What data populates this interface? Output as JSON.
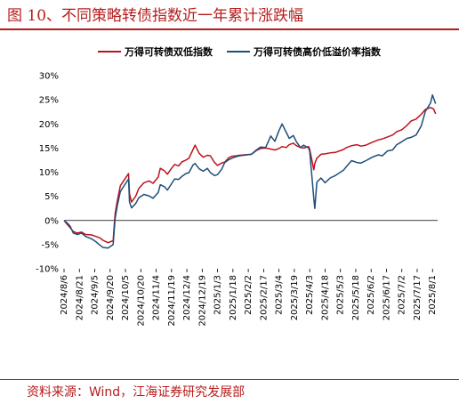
{
  "figure": {
    "title": "图 10、不同策略转债指数近一年累计涨跌幅",
    "source": "资料来源：Wind，江海证券研究发展部"
  },
  "colors": {
    "title": "#b71c1c",
    "series_red": "#c0121c",
    "series_blue": "#1f4e79"
  },
  "chart_data": {
    "type": "line",
    "title": "",
    "xlabel": "",
    "ylabel": "",
    "x_ticks": [
      "2024/8/6",
      "2024/8/21",
      "2024/9/5",
      "2024/9/20",
      "2024/10/5",
      "2024/10/20",
      "2024/11/4",
      "2024/11/19",
      "2024/12/4",
      "2024/12/19",
      "2025/1/3",
      "2025/1/18",
      "2025/2/2",
      "2025/2/17",
      "2025/3/4",
      "2025/3/19",
      "2025/4/3",
      "2025/4/18",
      "2025/5/3",
      "2025/5/18",
      "2025/6/2",
      "2025/6/17",
      "2025/7/2",
      "2025/7/17",
      "2025/8/1"
    ],
    "y_ticks": [
      "30%",
      "25%",
      "20%",
      "15%",
      "10%",
      "5%",
      "0%",
      "-5%",
      "-10%"
    ],
    "ylim": [
      -10,
      30
    ],
    "xlim": [
      "2024/8/6",
      "2025/8/6"
    ],
    "legend_position": "top",
    "grid": false,
    "series": [
      {
        "name": "万得可转债双低指数",
        "color": "#c0121c",
        "points": [
          [
            "2024/8/6",
            0
          ],
          [
            "2024/8/9",
            -0.8
          ],
          [
            "2024/8/12",
            -1.5
          ],
          [
            "2024/8/15",
            -2.3
          ],
          [
            "2024/8/19",
            -2.6
          ],
          [
            "2024/8/23",
            -2.4
          ],
          [
            "2024/8/27",
            -2.9
          ],
          [
            "2024/9/2",
            -3.0
          ],
          [
            "2024/9/6",
            -3.3
          ],
          [
            "2024/9/10",
            -3.6
          ],
          [
            "2024/9/13",
            -4.1
          ],
          [
            "2024/9/18",
            -4.6
          ],
          [
            "2024/9/23",
            -4.2
          ],
          [
            "2024/9/24",
            -1.0
          ],
          [
            "2024/9/25",
            1.5
          ],
          [
            "2024/9/27",
            4.0
          ],
          [
            "2024/9/30",
            7.2
          ],
          [
            "2024/10/8",
            9.7
          ],
          [
            "2024/10/9",
            5.5
          ],
          [
            "2024/10/11",
            3.8
          ],
          [
            "2024/10/15",
            5.0
          ],
          [
            "2024/10/18",
            6.6
          ],
          [
            "2024/10/23",
            7.8
          ],
          [
            "2024/10/28",
            8.2
          ],
          [
            "2024/11/1",
            7.7
          ],
          [
            "2024/11/6",
            9.0
          ],
          [
            "2024/11/8",
            10.8
          ],
          [
            "2024/11/12",
            10.3
          ],
          [
            "2024/11/15",
            9.6
          ],
          [
            "2024/11/19",
            10.8
          ],
          [
            "2024/11/22",
            11.6
          ],
          [
            "2024/11/26",
            11.3
          ],
          [
            "2024/11/29",
            12.1
          ],
          [
            "2024/12/3",
            12.5
          ],
          [
            "2024/12/6",
            12.9
          ],
          [
            "2024/12/10",
            14.7
          ],
          [
            "2024/12/12",
            15.6
          ],
          [
            "2024/12/16",
            13.9
          ],
          [
            "2024/12/20",
            13.1
          ],
          [
            "2024/12/24",
            13.5
          ],
          [
            "2024/12/27",
            13.4
          ],
          [
            "2024/12/31",
            12.0
          ],
          [
            "2025/1/3",
            11.4
          ],
          [
            "2025/1/7",
            11.9
          ],
          [
            "2025/1/10",
            12.1
          ],
          [
            "2025/1/14",
            13.0
          ],
          [
            "2025/1/17",
            13.3
          ],
          [
            "2025/1/21",
            13.4
          ],
          [
            "2025/1/24",
            13.5
          ],
          [
            "2025/2/5",
            13.7
          ],
          [
            "2025/2/10",
            14.5
          ],
          [
            "2025/2/14",
            14.9
          ],
          [
            "2025/2/19",
            15.0
          ],
          [
            "2025/2/24",
            14.8
          ],
          [
            "2025/2/28",
            14.6
          ],
          [
            "2025/3/4",
            14.9
          ],
          [
            "2025/3/7",
            15.3
          ],
          [
            "2025/3/11",
            15.1
          ],
          [
            "2025/3/14",
            15.7
          ],
          [
            "2025/3/18",
            16.0
          ],
          [
            "2025/3/21",
            15.5
          ],
          [
            "2025/3/25",
            15.1
          ],
          [
            "2025/3/28",
            15.0
          ],
          [
            "2025/4/2",
            15.3
          ],
          [
            "2025/4/3",
            14.7
          ],
          [
            "2025/4/7",
            10.5
          ],
          [
            "2025/4/8",
            11.8
          ],
          [
            "2025/4/10",
            12.9
          ],
          [
            "2025/4/14",
            13.7
          ],
          [
            "2025/4/18",
            13.8
          ],
          [
            "2025/4/23",
            14.0
          ],
          [
            "2025/4/28",
            14.1
          ],
          [
            "2025/5/6",
            14.7
          ],
          [
            "2025/5/9",
            15.1
          ],
          [
            "2025/5/14",
            15.5
          ],
          [
            "2025/5/19",
            15.7
          ],
          [
            "2025/5/23",
            15.4
          ],
          [
            "2025/5/28",
            15.6
          ],
          [
            "2025/6/3",
            16.2
          ],
          [
            "2025/6/9",
            16.7
          ],
          [
            "2025/6/13",
            16.9
          ],
          [
            "2025/6/18",
            17.3
          ],
          [
            "2025/6/23",
            17.7
          ],
          [
            "2025/6/27",
            18.4
          ],
          [
            "2025/7/2",
            18.8
          ],
          [
            "2025/7/7",
            19.7
          ],
          [
            "2025/7/11",
            20.6
          ],
          [
            "2025/7/16",
            21.0
          ],
          [
            "2025/7/21",
            22.0
          ],
          [
            "2025/7/25",
            23.0
          ],
          [
            "2025/7/30",
            23.4
          ],
          [
            "2025/8/2",
            23.1
          ],
          [
            "2025/8/4",
            22.1
          ]
        ]
      },
      {
        "name": "万得可转债高价低溢价率指数",
        "color": "#1f4e79",
        "points": [
          [
            "2024/8/6",
            0
          ],
          [
            "2024/8/9",
            -0.5
          ],
          [
            "2024/8/12",
            -1.2
          ],
          [
            "2024/8/15",
            -2.6
          ],
          [
            "2024/8/19",
            -2.9
          ],
          [
            "2024/8/23",
            -2.6
          ],
          [
            "2024/8/27",
            -3.3
          ],
          [
            "2024/9/2",
            -3.8
          ],
          [
            "2024/9/6",
            -4.4
          ],
          [
            "2024/9/10",
            -5.1
          ],
          [
            "2024/9/13",
            -5.6
          ],
          [
            "2024/9/18",
            -5.7
          ],
          [
            "2024/9/23",
            -5.0
          ],
          [
            "2024/9/24",
            -2.0
          ],
          [
            "2024/9/25",
            0.5
          ],
          [
            "2024/9/27",
            3.0
          ],
          [
            "2024/9/30",
            6.0
          ],
          [
            "2024/10/8",
            8.6
          ],
          [
            "2024/10/9",
            3.8
          ],
          [
            "2024/10/11",
            2.6
          ],
          [
            "2024/10/15",
            3.5
          ],
          [
            "2024/10/18",
            4.7
          ],
          [
            "2024/10/23",
            5.4
          ],
          [
            "2024/10/28",
            5.1
          ],
          [
            "2024/11/1",
            4.6
          ],
          [
            "2024/11/6",
            5.8
          ],
          [
            "2024/11/8",
            7.4
          ],
          [
            "2024/11/12",
            7.0
          ],
          [
            "2024/11/15",
            6.3
          ],
          [
            "2024/11/19",
            7.6
          ],
          [
            "2024/11/22",
            8.6
          ],
          [
            "2024/11/26",
            8.5
          ],
          [
            "2024/11/29",
            9.1
          ],
          [
            "2024/12/3",
            9.7
          ],
          [
            "2024/12/6",
            9.9
          ],
          [
            "2024/12/10",
            11.5
          ],
          [
            "2024/12/12",
            11.8
          ],
          [
            "2024/12/16",
            10.7
          ],
          [
            "2024/12/20",
            10.2
          ],
          [
            "2024/12/24",
            10.8
          ],
          [
            "2024/12/27",
            9.9
          ],
          [
            "2024/12/31",
            9.3
          ],
          [
            "2025/1/3",
            9.5
          ],
          [
            "2025/1/7",
            10.6
          ],
          [
            "2025/1/10",
            12.0
          ],
          [
            "2025/1/14",
            12.6
          ],
          [
            "2025/1/17",
            12.9
          ],
          [
            "2025/1/21",
            13.2
          ],
          [
            "2025/1/24",
            13.4
          ],
          [
            "2025/2/5",
            13.7
          ],
          [
            "2025/2/10",
            14.6
          ],
          [
            "2025/2/14",
            15.2
          ],
          [
            "2025/2/19",
            15.1
          ],
          [
            "2025/2/24",
            17.5
          ],
          [
            "2025/2/28",
            16.4
          ],
          [
            "2025/3/4",
            18.6
          ],
          [
            "2025/3/7",
            20.0
          ],
          [
            "2025/3/11",
            18.3
          ],
          [
            "2025/3/14",
            17.0
          ],
          [
            "2025/3/18",
            17.6
          ],
          [
            "2025/3/21",
            16.3
          ],
          [
            "2025/3/25",
            15.1
          ],
          [
            "2025/3/28",
            15.6
          ],
          [
            "2025/4/2",
            15.0
          ],
          [
            "2025/4/3",
            14.3
          ],
          [
            "2025/4/7",
            4.5
          ],
          [
            "2025/4/8",
            2.5
          ],
          [
            "2025/4/10",
            7.9
          ],
          [
            "2025/4/14",
            8.8
          ],
          [
            "2025/4/18",
            7.8
          ],
          [
            "2025/4/23",
            8.8
          ],
          [
            "2025/4/28",
            9.3
          ],
          [
            "2025/5/6",
            10.4
          ],
          [
            "2025/5/9",
            11.2
          ],
          [
            "2025/5/14",
            12.4
          ],
          [
            "2025/5/19",
            12.0
          ],
          [
            "2025/5/23",
            11.9
          ],
          [
            "2025/5/28",
            12.4
          ],
          [
            "2025/6/3",
            13.1
          ],
          [
            "2025/6/9",
            13.6
          ],
          [
            "2025/6/13",
            13.4
          ],
          [
            "2025/6/18",
            14.4
          ],
          [
            "2025/6/23",
            14.6
          ],
          [
            "2025/6/27",
            15.7
          ],
          [
            "2025/7/2",
            16.3
          ],
          [
            "2025/7/7",
            17.0
          ],
          [
            "2025/7/11",
            17.2
          ],
          [
            "2025/7/16",
            17.7
          ],
          [
            "2025/7/21",
            19.6
          ],
          [
            "2025/7/25",
            22.6
          ],
          [
            "2025/7/30",
            24.3
          ],
          [
            "2025/8/1",
            26.0
          ],
          [
            "2025/8/4",
            24.2
          ]
        ]
      }
    ]
  }
}
